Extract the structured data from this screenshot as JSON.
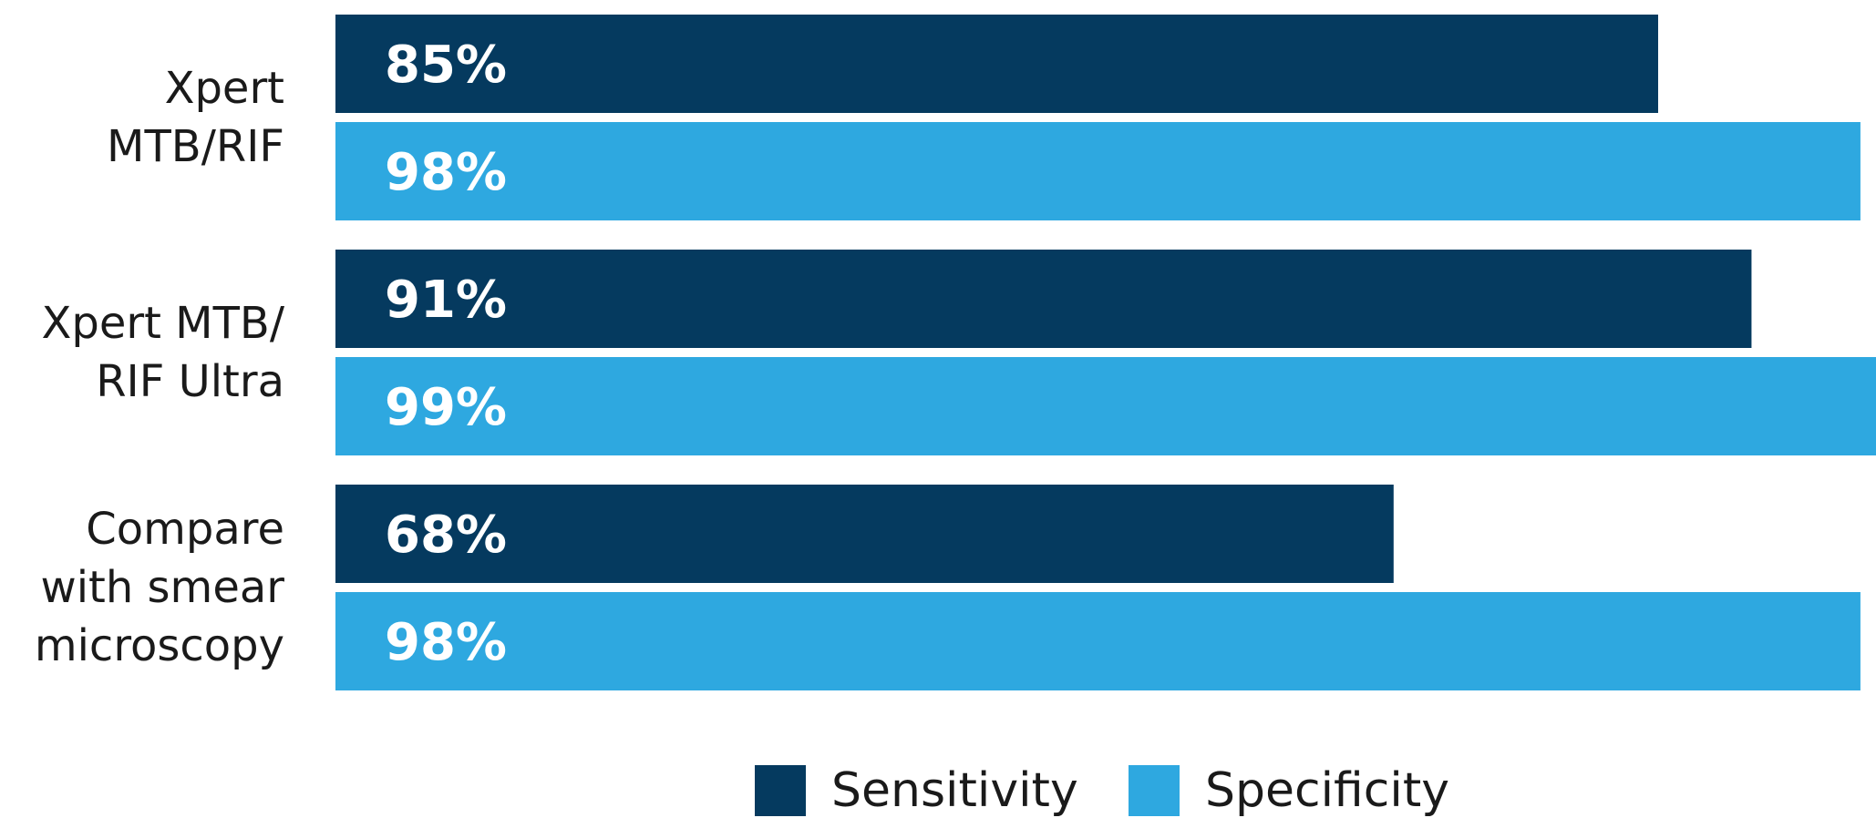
{
  "colors": {
    "sensitivity": "#053a5f",
    "specificity": "#2ea8e0",
    "bar_label": "#ffffff"
  },
  "chart_data": {
    "type": "bar",
    "orientation": "horizontal",
    "categories": [
      "Xpert\nMTB/RIF",
      "Xpert MTB/\nRIF Ultra",
      "Compare\nwith smear\nmicroscopy"
    ],
    "series": [
      {
        "name": "Sensitivity",
        "values": [
          85,
          91,
          68
        ],
        "labels": [
          "85%",
          "91%",
          "68%"
        ]
      },
      {
        "name": "Specificity",
        "values": [
          98,
          99,
          98
        ],
        "labels": [
          "98%",
          "99%",
          "98%"
        ]
      }
    ],
    "xlim": [
      0,
      99
    ],
    "grid": false,
    "legend_position": "bottom-center"
  }
}
